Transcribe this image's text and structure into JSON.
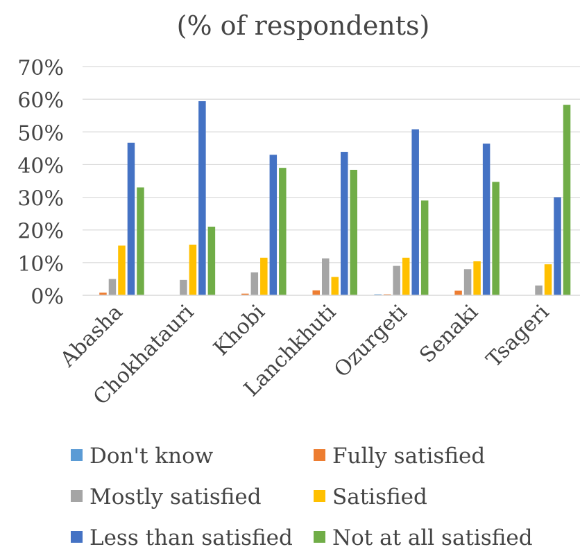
{
  "chart_data": {
    "type": "bar",
    "title": "(% of respondents)",
    "categories": [
      "Abasha",
      "Chokhatauri",
      "Khobi",
      "Lanchkhuti",
      "Ozurgeti",
      "Senaki",
      "Tsageri"
    ],
    "y_ticks": [
      "0%",
      "10%",
      "20%",
      "30%",
      "40%",
      "50%",
      "60%",
      "70%"
    ],
    "ylim": [
      0,
      70
    ],
    "grid": true,
    "legend_position": "bottom",
    "series": [
      {
        "name": "Don't know",
        "color": "#5B9BD5",
        "values": [
          0,
          0,
          0,
          0,
          0.3,
          0,
          0
        ]
      },
      {
        "name": "Fully satisfied",
        "color": "#ED7D31",
        "values": [
          0.8,
          0,
          0.5,
          1.5,
          0.3,
          1.4,
          0
        ]
      },
      {
        "name": "Mostly satisfied",
        "color": "#A5A5A5",
        "values": [
          5,
          4.7,
          7,
          11.3,
          9,
          8,
          3
        ]
      },
      {
        "name": "Satisfied",
        "color": "#FFC000",
        "values": [
          15.2,
          15.5,
          11.5,
          5.6,
          11.5,
          10.4,
          9.5
        ]
      },
      {
        "name": "Less than satisfied",
        "color": "#4472C4",
        "values": [
          46.7,
          59.4,
          43,
          43.9,
          50.8,
          46.4,
          30
        ]
      },
      {
        "name": "Not at all satisfied",
        "color": "#70AD47",
        "values": [
          33,
          21,
          39,
          38.4,
          29,
          34.7,
          58.3
        ]
      }
    ]
  }
}
